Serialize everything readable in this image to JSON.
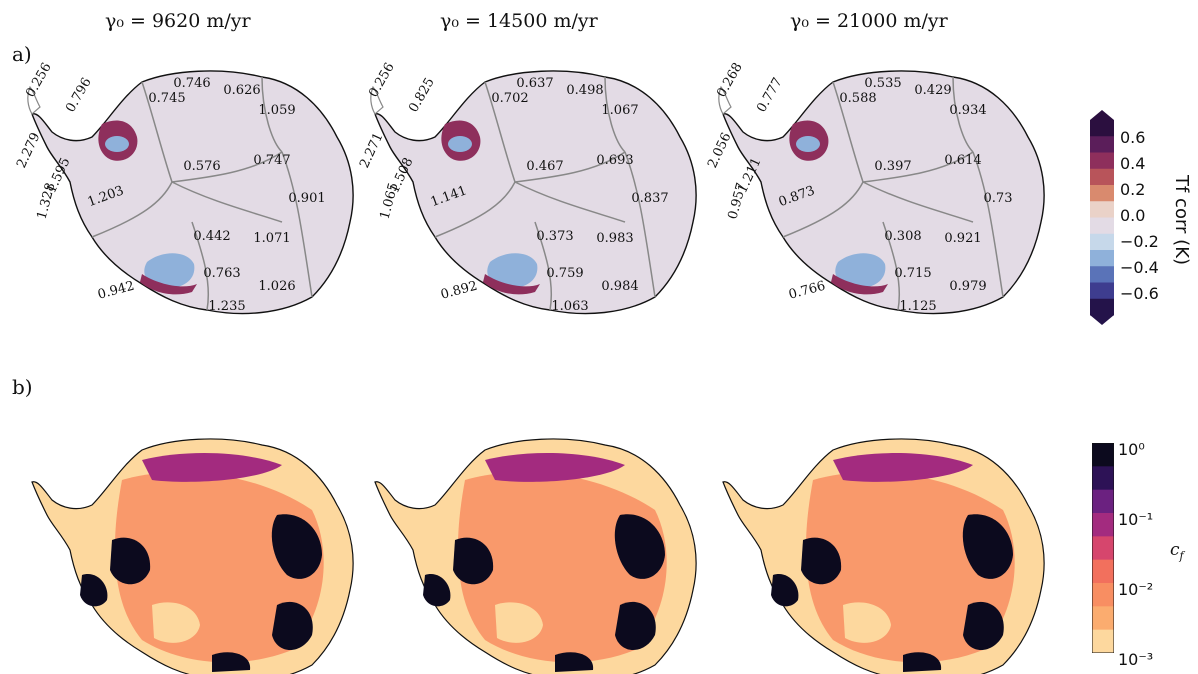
{
  "columns": [
    {
      "title": "γ₀ = 9620 m/yr",
      "labels": [
        "0.256",
        "0.796",
        "0.746",
        "0.626",
        "0.745",
        "1.059",
        "2.279",
        "1.595",
        "1.328",
        "0.576",
        "0.747",
        "1.203",
        "0.901",
        "0.442",
        "1.071",
        "0.942",
        "0.763",
        "1.026",
        "1.235"
      ]
    },
    {
      "title": "γ₀ = 14500 m/yr",
      "labels": [
        "0.256",
        "0.825",
        "0.637",
        "0.498",
        "0.702",
        "1.067",
        "2.271",
        "1.508",
        "1.065",
        "0.467",
        "0.693",
        "1.141",
        "0.837",
        "0.373",
        "0.983",
        "0.892",
        "0.759",
        "0.984",
        "1.063"
      ]
    },
    {
      "title": "γ₀ = 21000 m/yr",
      "labels": [
        "0.268",
        "0.777",
        "0.535",
        "0.429",
        "0.588",
        "0.934",
        "2.056",
        "1.211",
        "0.957",
        "0.397",
        "0.614",
        "0.873",
        "0.73",
        "0.308",
        "0.921",
        "0.766",
        "0.715",
        "0.979",
        "1.125"
      ]
    }
  ],
  "panels": {
    "a": "a)",
    "b": "b)"
  },
  "colorbar_a": {
    "label": "Tf corr (K)",
    "ticks": [
      "0.6",
      "0.4",
      "0.2",
      "0.0",
      "−0.2",
      "−0.4",
      "−0.6"
    ],
    "colors": [
      "#2b0f3f",
      "#5b1e5a",
      "#8e2f5c",
      "#b8545a",
      "#d98a6e",
      "#ead2c8",
      "#e3dbe5",
      "#c6d8ea",
      "#8fb1da",
      "#5a73b8",
      "#3e3d8f",
      "#24134a"
    ]
  },
  "colorbar_b": {
    "label": "c_f",
    "ticks": [
      "10⁰",
      "10⁻¹",
      "10⁻²",
      "10⁻³"
    ],
    "colors": [
      "#0c0a1e",
      "#2d1256",
      "#6b2180",
      "#a32b7f",
      "#d6466d",
      "#f2705d",
      "#f88e62",
      "#fbac6f",
      "#fdd89e"
    ]
  },
  "map_colors": {
    "neutral": "#e3dbe5",
    "warm": "#8e2f5c",
    "cool": "#8fb1da",
    "base": "#fdd89e",
    "mid": "#f88e62",
    "high": "#a32b7f",
    "max": "#0c0a1e"
  }
}
